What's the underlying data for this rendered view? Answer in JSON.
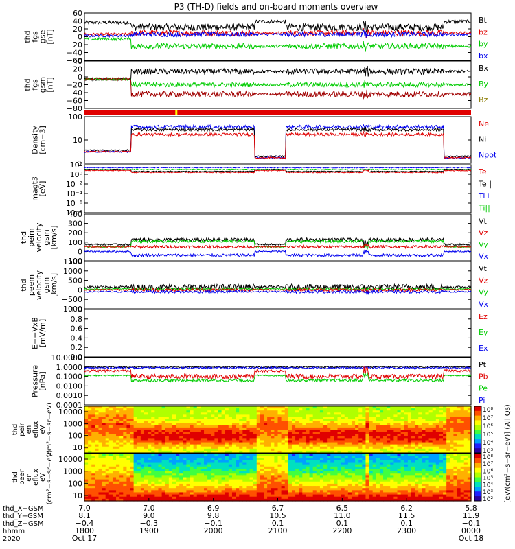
{
  "title": "P3 (TH-D) fields and on-board moments overview",
  "colors": {
    "black": "#000000",
    "red": "#e00000",
    "green": "#00cc00",
    "blue": "#0000ee",
    "darkred": "#a00000",
    "olive": "#8a7a00",
    "yellow": "#ffff00"
  },
  "chart_data": [
    {
      "type": "line",
      "id": "fgs",
      "ylabel": "thd fgs gse [nT]",
      "ylim": [
        -60,
        60
      ],
      "ticks": [
        "60",
        "40",
        "20",
        "0",
        "−20",
        "−40",
        "−60"
      ],
      "legend": [
        {
          "name": "Bt",
          "color": "black"
        },
        {
          "name": "bz",
          "color": "red"
        },
        {
          "name": "by",
          "color": "green"
        },
        {
          "name": "bx",
          "color": "blue"
        }
      ]
    },
    {
      "type": "line",
      "id": "fgs_gsm",
      "ylabel": "thd fgs gsm [nT]",
      "ylim": [
        -90,
        50
      ],
      "ticks": [
        "40",
        "20",
        "0",
        "−20",
        "−40",
        "−60",
        "−80"
      ],
      "legend": [
        {
          "name": "Bx",
          "color": "black"
        },
        {
          "name": "By",
          "color": "green"
        },
        {
          "name": "Bz",
          "color": "olive"
        }
      ]
    },
    {
      "type": "line",
      "id": "density",
      "ylabel": "Density [cm−3]",
      "scale": "log",
      "ylim": [
        1,
        200
      ],
      "ticks": [
        "100",
        "10",
        "1"
      ],
      "legend": [
        {
          "name": "Ne",
          "color": "red"
        },
        {
          "name": "Ni",
          "color": "black"
        },
        {
          "name": "Npot",
          "color": "blue"
        }
      ]
    },
    {
      "type": "line",
      "id": "temperature",
      "ylabel": "magt3 [eV]",
      "scale": "log",
      "ticks": [
        "10²",
        "10⁰",
        "10⁻²",
        "10⁻⁴",
        "10⁻⁶",
        "10⁻⁸"
      ],
      "legend": [
        {
          "name": "Te⊥",
          "color": "red"
        },
        {
          "name": "Te||",
          "color": "black"
        },
        {
          "name": "Ti⊥",
          "color": "blue"
        },
        {
          "name": "Ti||",
          "color": "green"
        }
      ]
    },
    {
      "type": "line",
      "id": "peim",
      "ylabel": "thd peim velocity gsm [km/s]",
      "ylim": [
        -100,
        400
      ],
      "ticks": [
        "400",
        "300",
        "200",
        "100",
        "0",
        "−100"
      ],
      "legend": [
        {
          "name": "Vt",
          "color": "black"
        },
        {
          "name": "Vz",
          "color": "red"
        },
        {
          "name": "Vy",
          "color": "green"
        },
        {
          "name": "Vx",
          "color": "blue"
        }
      ]
    },
    {
      "type": "line",
      "id": "peem",
      "ylabel": "thd peem velocity gsm [km/s]",
      "ylim": [
        -1000,
        1500
      ],
      "ticks": [
        "1500",
        "1000",
        "500",
        "0",
        "−500",
        "−1000"
      ],
      "legend": [
        {
          "name": "Vt",
          "color": "black"
        },
        {
          "name": "Vz",
          "color": "red"
        },
        {
          "name": "Vy",
          "color": "green"
        },
        {
          "name": "Vx",
          "color": "blue"
        }
      ]
    },
    {
      "type": "line",
      "id": "efield",
      "ylabel": "E=−VxB [mV/m]",
      "ylim": [
        0,
        1
      ],
      "ticks": [
        "1.0",
        "0.8",
        "0.6",
        "0.4",
        "0.2",
        "0.0"
      ],
      "legend": [
        {
          "name": "Ez",
          "color": "red"
        },
        {
          "name": "Ey",
          "color": "green"
        },
        {
          "name": "Ex",
          "color": "blue"
        }
      ]
    },
    {
      "type": "line",
      "id": "pressure",
      "ylabel": "Pressure [nPa]",
      "scale": "log",
      "ylim": [
        0.0001,
        10
      ],
      "ticks": [
        "10.0000",
        "1.0000",
        "0.1000",
        "0.0100",
        "0.0010",
        "0.0001"
      ],
      "legend": [
        {
          "name": "Pt",
          "color": "black"
        },
        {
          "name": "Pb",
          "color": "red"
        },
        {
          "name": "Pe",
          "color": "green"
        },
        {
          "name": "Pi",
          "color": "blue"
        }
      ]
    },
    {
      "type": "heatmap",
      "id": "peir",
      "ylabel": "thd peir en eflux eV (cm²−s−sr−eV)",
      "scale": "log",
      "ticks": [
        "10000",
        "1000",
        "100",
        "10"
      ]
    },
    {
      "type": "heatmap",
      "id": "peer",
      "ylabel": "thd peer en eflux eV (cm²−s−sr−eV)",
      "scale": "log",
      "ticks": [
        "10000",
        "1000",
        "100",
        "10"
      ]
    }
  ],
  "colorbar": {
    "label": "[eV/(cm²−s−sr−eV)] (All Qs)",
    "ticks_top": [
      "10⁸",
      "10⁷",
      "10⁶",
      "10⁵",
      "10⁴",
      "10³"
    ],
    "ticks_bottom": [
      "10⁸",
      "10⁷",
      "10⁶",
      "10⁵",
      "10⁴",
      "10³",
      "10²"
    ]
  },
  "xaxis": {
    "row_labels": [
      "thd_X−GSM",
      "thd_Y−GSM",
      "thd_Z−GSM",
      "hhmm",
      "2020"
    ],
    "columns": [
      {
        "x": "7.0",
        "y": "8.1",
        "z": "−0.4",
        "hhmm": "1800",
        "date": "Oct 17"
      },
      {
        "x": "7.0",
        "y": "9.0",
        "z": "−0.3",
        "hhmm": "1900",
        "date": ""
      },
      {
        "x": "6.9",
        "y": "9.8",
        "z": "−0.1",
        "hhmm": "2000",
        "date": ""
      },
      {
        "x": "6.7",
        "y": "10.5",
        "z": "0.1",
        "hhmm": "2100",
        "date": ""
      },
      {
        "x": "6.5",
        "y": "11.0",
        "z": "0.1",
        "hhmm": "2200",
        "date": ""
      },
      {
        "x": "6.2",
        "y": "11.5",
        "z": "0.1",
        "hhmm": "2300",
        "date": ""
      },
      {
        "x": "5.8",
        "y": "11.9",
        "z": "−0.1",
        "hhmm": "0000",
        "date": "Oct 18"
      }
    ]
  }
}
